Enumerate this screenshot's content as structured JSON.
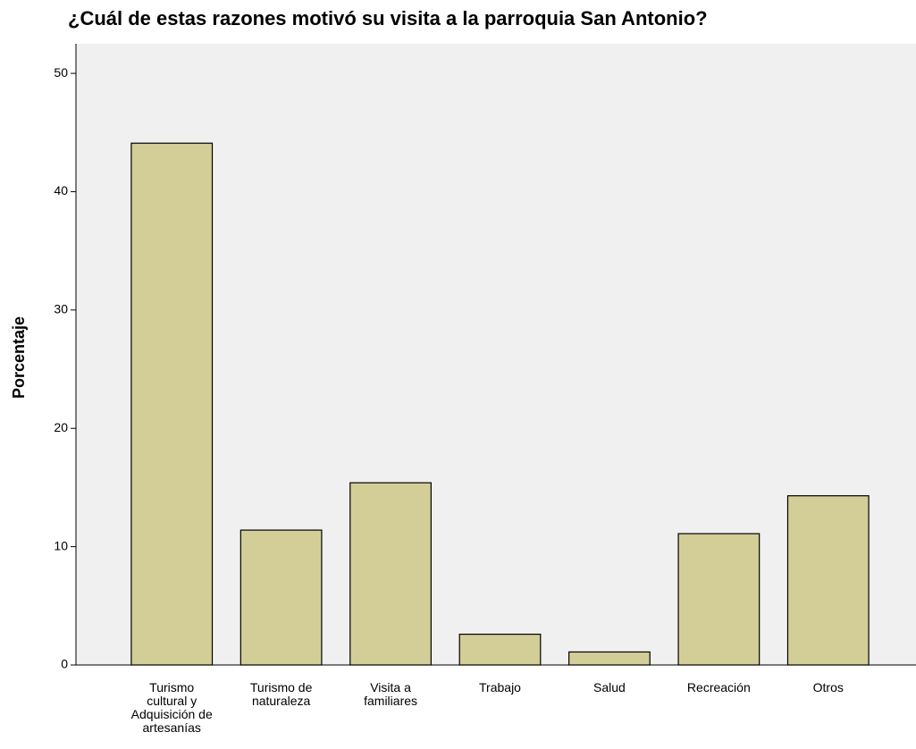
{
  "chart_data": {
    "type": "bar",
    "title": "¿Cuál de estas razones motivó su visita a la parroquia San Antonio?",
    "y_label": "Porcentaje",
    "categories": [
      "Turismo cultural y Adquisición de artesanías",
      "Turismo de naturaleza",
      "Visita a familiares",
      "Trabajo",
      "Salud",
      "Recreación",
      "Otros"
    ],
    "values": [
      44.1,
      11.4,
      15.4,
      2.6,
      1.1,
      11.1,
      14.3
    ],
    "color": "#d3ce97",
    "ylim": [
      0,
      52.5
    ],
    "yticks": [
      0,
      10,
      20,
      30,
      40,
      50
    ],
    "grid": false
  }
}
